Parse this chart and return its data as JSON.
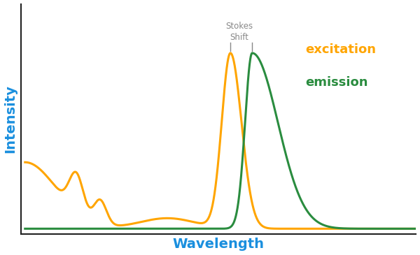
{
  "xlabel": "Wavelength",
  "ylabel": "Intensity",
  "xlabel_color": "#1a8fde",
  "ylabel_color": "#1a8fde",
  "excitation_color": "#FFA500",
  "emission_color": "#2A8C3F",
  "annotation_color": "#888888",
  "stokes_label": "Stokes\nShift",
  "excitation_label": "excitation",
  "emission_label": "emission",
  "background_color": "#ffffff",
  "exc_peak": 0.52,
  "emi_peak": 0.575,
  "figsize": [
    6.0,
    3.65
  ],
  "dpi": 100
}
